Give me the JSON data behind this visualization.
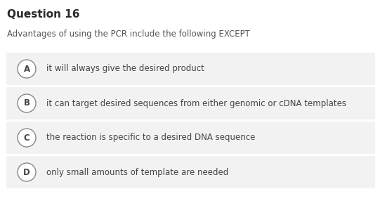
{
  "title": "Question 16",
  "question": "Advantages of using the PCR include the following EXCEPT",
  "options": [
    {
      "label": "A",
      "text": "it will always give the desired product"
    },
    {
      "label": "B",
      "text": "it can target desired sequences from either genomic or cDNA templates"
    },
    {
      "label": "C",
      "text": "the reaction is specific to a desired DNA sequence"
    },
    {
      "label": "D",
      "text": "only small amounts of template are needed"
    }
  ],
  "bg_color": "#ffffff",
  "option_bg_color": "#f2f2f2",
  "title_color": "#2a2a2a",
  "question_color": "#555555",
  "option_text_color": "#444444",
  "circle_edge_color": "#888888",
  "circle_bg_color": "#ffffff",
  "title_fontsize": 11,
  "question_fontsize": 8.5,
  "option_fontsize": 8.5,
  "label_fontsize": 8.5,
  "fig_width": 5.41,
  "fig_height": 2.86,
  "dpi": 100
}
